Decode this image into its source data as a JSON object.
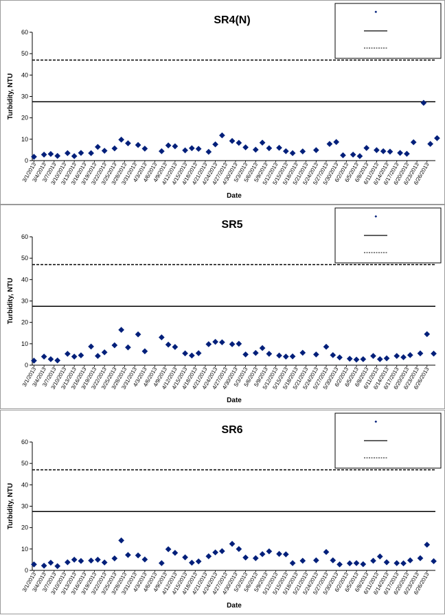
{
  "chart_data": [
    {
      "type": "scatter",
      "title": "SR4(N)",
      "xlabel": "Date",
      "ylabel": "Turbidity, NTU",
      "ylim": [
        0,
        60
      ],
      "yticks": [
        0,
        10,
        20,
        30,
        40,
        50,
        60
      ],
      "grid": false,
      "legend_position": "top-right",
      "x_tick_labels": [
        "3/1/2013",
        "3/4/2013",
        "3/7/2013",
        "3/10/2013",
        "3/13/2013",
        "3/16/2013",
        "3/19/2013",
        "3/22/2013",
        "3/25/2013",
        "3/28/2013",
        "3/31/2013",
        "4/3/2013",
        "4/6/2013",
        "4/9/2013",
        "4/12/2013",
        "4/15/2013",
        "4/18/2013",
        "4/21/2013",
        "4/24/2013",
        "4/27/2013",
        "4/30/2013",
        "5/3/2013",
        "5/6/2013",
        "5/9/2013",
        "5/12/2013",
        "5/15/2013",
        "5/18/2013",
        "5/21/2013",
        "5/24/2013",
        "5/27/2013",
        "5/30/2013",
        "6/2/2013",
        "6/5/2013",
        "6/8/2013",
        "6/11/2013",
        "6/14/2013",
        "6/17/2013",
        "6/20/2013",
        "6/23/2013",
        "6/26/2013"
      ],
      "x": [
        "3/1/2013",
        "3/4/2013",
        "3/6/2013",
        "3/8/2013",
        "3/11/2013",
        "3/13/2013",
        "3/15/2013",
        "3/18/2013",
        "3/20/2013",
        "3/22/2013",
        "3/25/2013",
        "3/27/2013",
        "3/29/2013",
        "4/1/2013",
        "4/3/2013",
        "4/8/2013",
        "4/10/2013",
        "4/12/2013",
        "4/15/2013",
        "4/17/2013",
        "4/19/2013",
        "4/22/2013",
        "4/24/2013",
        "4/26/2013",
        "4/29/2013",
        "5/1/2013",
        "5/3/2013",
        "5/6/2013",
        "5/8/2013",
        "5/10/2013",
        "5/13/2013",
        "5/15/2013",
        "5/17/2013",
        "5/20/2013",
        "5/24/2013",
        "5/28/2013",
        "5/30/2013",
        "6/1/2013",
        "6/4/2013",
        "6/6/2013",
        "6/8/2013",
        "6/11/2013",
        "6/13/2013",
        "6/15/2013",
        "6/18/2013",
        "6/20/2013",
        "6/22/2013",
        "6/25/2013",
        "6/27/2013",
        "6/29/2013"
      ],
      "series": [
        {
          "marker": "diamond",
          "color": "#001f7a",
          "values": [
            1.8,
            2.8,
            3.1,
            2.2,
            3.5,
            2.1,
            3.6,
            3.5,
            6.4,
            4.6,
            5.7,
            9.8,
            8.1,
            7.3,
            5.6,
            4.4,
            7.1,
            6.7,
            4.8,
            5.8,
            5.5,
            4.1,
            7.6,
            11.8,
            9.2,
            8.3,
            6.2,
            5.1,
            8.4,
            5.8,
            6.0,
            4.4,
            3.5,
            4.3,
            4.9,
            7.8,
            8.7,
            2.5,
            2.8,
            2.1,
            5.9,
            4.9,
            4.4,
            4.2,
            3.6,
            3.2,
            8.6,
            27.0,
            7.8,
            10.5
          ]
        }
      ],
      "reference_lines": [
        {
          "value": 27.5,
          "style": "solid"
        },
        {
          "value": 47,
          "style": "dashed"
        }
      ]
    },
    {
      "type": "scatter",
      "title": "SR5",
      "xlabel": "Date",
      "ylabel": "Turbidity, NTU",
      "ylim": [
        0,
        60
      ],
      "yticks": [
        0,
        10,
        20,
        30,
        40,
        50,
        60
      ],
      "grid": false,
      "legend_position": "top-right",
      "x_tick_labels": [
        "3/1/2013",
        "3/4/2013",
        "3/7/2013",
        "3/10/2013",
        "3/13/2013",
        "3/16/2013",
        "3/19/2013",
        "3/22/2013",
        "3/25/2013",
        "3/28/2013",
        "3/31/2013",
        "4/3/2013",
        "4/6/2013",
        "4/9/2013",
        "4/12/2013",
        "4/15/2013",
        "4/18/2013",
        "4/21/2013",
        "4/24/2013",
        "4/27/2013",
        "4/30/2013",
        "5/3/2013",
        "5/6/2013",
        "5/9/2013",
        "5/12/2013",
        "5/15/2013",
        "5/18/2013",
        "5/21/2013",
        "5/24/2013",
        "5/27/2013",
        "5/30/2013",
        "6/2/2013",
        "6/5/2013",
        "6/8/2013",
        "6/11/2013",
        "6/14/2013",
        "6/17/2013",
        "6/20/2013",
        "6/23/2013",
        "6/26/2013"
      ],
      "x": [
        "3/1/2013",
        "3/4/2013",
        "3/6/2013",
        "3/8/2013",
        "3/11/2013",
        "3/13/2013",
        "3/15/2013",
        "3/18/2013",
        "3/20/2013",
        "3/22/2013",
        "3/25/2013",
        "3/27/2013",
        "3/29/2013",
        "4/1/2013",
        "4/3/2013",
        "4/8/2013",
        "4/10/2013",
        "4/12/2013",
        "4/15/2013",
        "4/17/2013",
        "4/19/2013",
        "4/22/2013",
        "4/24/2013",
        "4/26/2013",
        "4/29/2013",
        "5/1/2013",
        "5/3/2013",
        "5/6/2013",
        "5/8/2013",
        "5/10/2013",
        "5/13/2013",
        "5/15/2013",
        "5/17/2013",
        "5/20/2013",
        "5/24/2013",
        "5/27/2013",
        "5/29/2013",
        "5/31/2013",
        "6/3/2013",
        "6/5/2013",
        "6/7/2013",
        "6/10/2013",
        "6/12/2013",
        "6/14/2013",
        "6/17/2013",
        "6/19/2013",
        "6/21/2013",
        "6/24/2013",
        "6/26/2013",
        "6/28/2013"
      ],
      "series": [
        {
          "marker": "diamond",
          "color": "#001f7a",
          "values": [
            2.1,
            4.0,
            2.8,
            2.2,
            5.3,
            4.0,
            4.6,
            8.7,
            4.3,
            6.0,
            9.3,
            16.5,
            8.3,
            14.4,
            6.5,
            13.0,
            9.6,
            8.5,
            5.5,
            4.5,
            5.6,
            9.8,
            10.9,
            10.7,
            9.8,
            10.0,
            5.0,
            5.7,
            8.0,
            5.3,
            4.5,
            4.0,
            4.1,
            5.8,
            5.0,
            8.6,
            4.7,
            3.6,
            3.0,
            2.6,
            2.8,
            4.3,
            2.8,
            3.2,
            4.3,
            3.7,
            4.7,
            5.5,
            14.5,
            5.4
          ]
        }
      ],
      "reference_lines": [
        {
          "value": 27.5,
          "style": "solid"
        },
        {
          "value": 47,
          "style": "dashed"
        }
      ]
    },
    {
      "type": "scatter",
      "title": "SR6",
      "xlabel": "Date",
      "ylabel": "Turbidity, NTU",
      "ylim": [
        0,
        60
      ],
      "yticks": [
        0,
        10,
        20,
        30,
        40,
        50,
        60
      ],
      "grid": false,
      "legend_position": "top-right",
      "x_tick_labels": [
        "3/1/2013",
        "3/4/2013",
        "3/7/2013",
        "3/10/2013",
        "3/13/2013",
        "3/16/2013",
        "3/19/2013",
        "3/22/2013",
        "3/25/2013",
        "3/28/2013",
        "3/31/2013",
        "4/3/2013",
        "4/6/2013",
        "4/9/2013",
        "4/12/2013",
        "4/15/2013",
        "4/18/2013",
        "4/21/2013",
        "4/24/2013",
        "4/27/2013",
        "4/30/2013",
        "5/3/2013",
        "5/6/2013",
        "5/9/2013",
        "5/12/2013",
        "5/15/2013",
        "5/18/2013",
        "5/21/2013",
        "5/24/2013",
        "5/27/2013",
        "5/30/2013",
        "6/2/2013",
        "6/5/2013",
        "6/8/2013",
        "6/11/2013",
        "6/14/2013",
        "6/17/2013",
        "6/20/2013",
        "6/23/2013",
        "6/26/2013"
      ],
      "x": [
        "3/1/2013",
        "3/4/2013",
        "3/6/2013",
        "3/8/2013",
        "3/11/2013",
        "3/13/2013",
        "3/15/2013",
        "3/18/2013",
        "3/20/2013",
        "3/22/2013",
        "3/25/2013",
        "3/27/2013",
        "3/29/2013",
        "4/1/2013",
        "4/3/2013",
        "4/8/2013",
        "4/10/2013",
        "4/12/2013",
        "4/15/2013",
        "4/17/2013",
        "4/19/2013",
        "4/22/2013",
        "4/24/2013",
        "4/26/2013",
        "4/29/2013",
        "5/1/2013",
        "5/3/2013",
        "5/6/2013",
        "5/8/2013",
        "5/10/2013",
        "5/13/2013",
        "5/15/2013",
        "5/17/2013",
        "5/20/2013",
        "5/24/2013",
        "5/27/2013",
        "5/29/2013",
        "5/31/2013",
        "6/3/2013",
        "6/5/2013",
        "6/7/2013",
        "6/10/2013",
        "6/12/2013",
        "6/14/2013",
        "6/17/2013",
        "6/19/2013",
        "6/21/2013",
        "6/24/2013",
        "6/26/2013",
        "6/28/2013"
      ],
      "series": [
        {
          "marker": "diamond",
          "color": "#001f7a",
          "values": [
            2.8,
            2.2,
            3.6,
            2.0,
            3.8,
            5.0,
            4.4,
            4.6,
            5.0,
            3.7,
            5.6,
            14.0,
            7.2,
            7.0,
            5.1,
            3.4,
            9.9,
            8.2,
            6.1,
            3.6,
            4.2,
            6.6,
            8.4,
            9.0,
            12.4,
            10.0,
            6.0,
            5.7,
            7.6,
            8.9,
            7.7,
            7.5,
            3.4,
            4.5,
            4.7,
            8.6,
            4.7,
            2.8,
            3.3,
            3.4,
            2.9,
            4.5,
            6.5,
            3.8,
            3.4,
            3.3,
            4.7,
            5.7,
            12.0,
            4.3
          ]
        }
      ],
      "reference_lines": [
        {
          "value": 27.5,
          "style": "solid"
        },
        {
          "value": 47,
          "style": "dashed"
        }
      ]
    }
  ]
}
